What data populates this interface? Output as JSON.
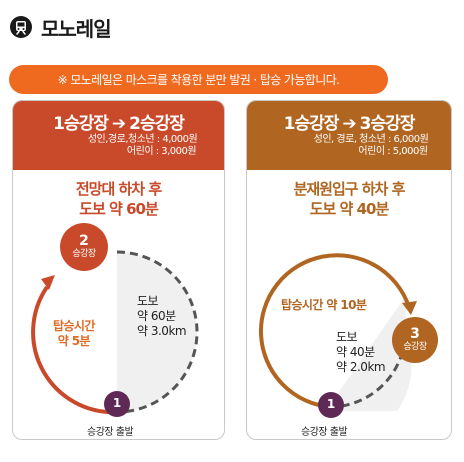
{
  "header": {
    "icon": "monorail-icon",
    "title": "모노레일"
  },
  "notice": {
    "text": "※ 모노레일은 마스크를 착용한 분만 발권 · 탑승 가능합니다."
  },
  "colors": {
    "accent_orange": "#ef6a1f",
    "card1_color": "#c84a2a",
    "card2_color": "#b06521",
    "walk_area": "#f0f0f0",
    "start_dot": "#5e2a55"
  },
  "cards": [
    {
      "route_from": "1승강장",
      "route_arrow": "➔",
      "route_to": "2승강장",
      "fare_adult": "성인,경로,청소년 : 4,000원",
      "fare_child": "어린이 : 3,000원",
      "sub_line1": "전망대 하차 후",
      "sub_line2": "도보 약 60분",
      "dest_num": "2",
      "dest_label": "승강장",
      "walk_line1": "도보",
      "walk_line2": "약 60분",
      "walk_line3": "약 3.0km",
      "ride_line1": "탑승시간",
      "ride_line2": "약 5분",
      "start_num": "1",
      "start_label": "승강장 출발"
    },
    {
      "route_from": "1승강장",
      "route_arrow": "➔",
      "route_to": "3승강장",
      "fare_adult": "성인, 경로, 청소년 : 6,000원",
      "fare_child": "어린이 : 5,000원",
      "sub_line1": "분재원입구 하차 후",
      "sub_line2": "도보 약 40분",
      "dest_num": "3",
      "dest_label": "승강장",
      "walk_line1": "도보",
      "walk_line2": "약 40분",
      "walk_line3": "약 2.0km",
      "ride_line1": "탑승시간 약 10분",
      "start_num": "1",
      "start_label": "승강장 출발"
    }
  ]
}
